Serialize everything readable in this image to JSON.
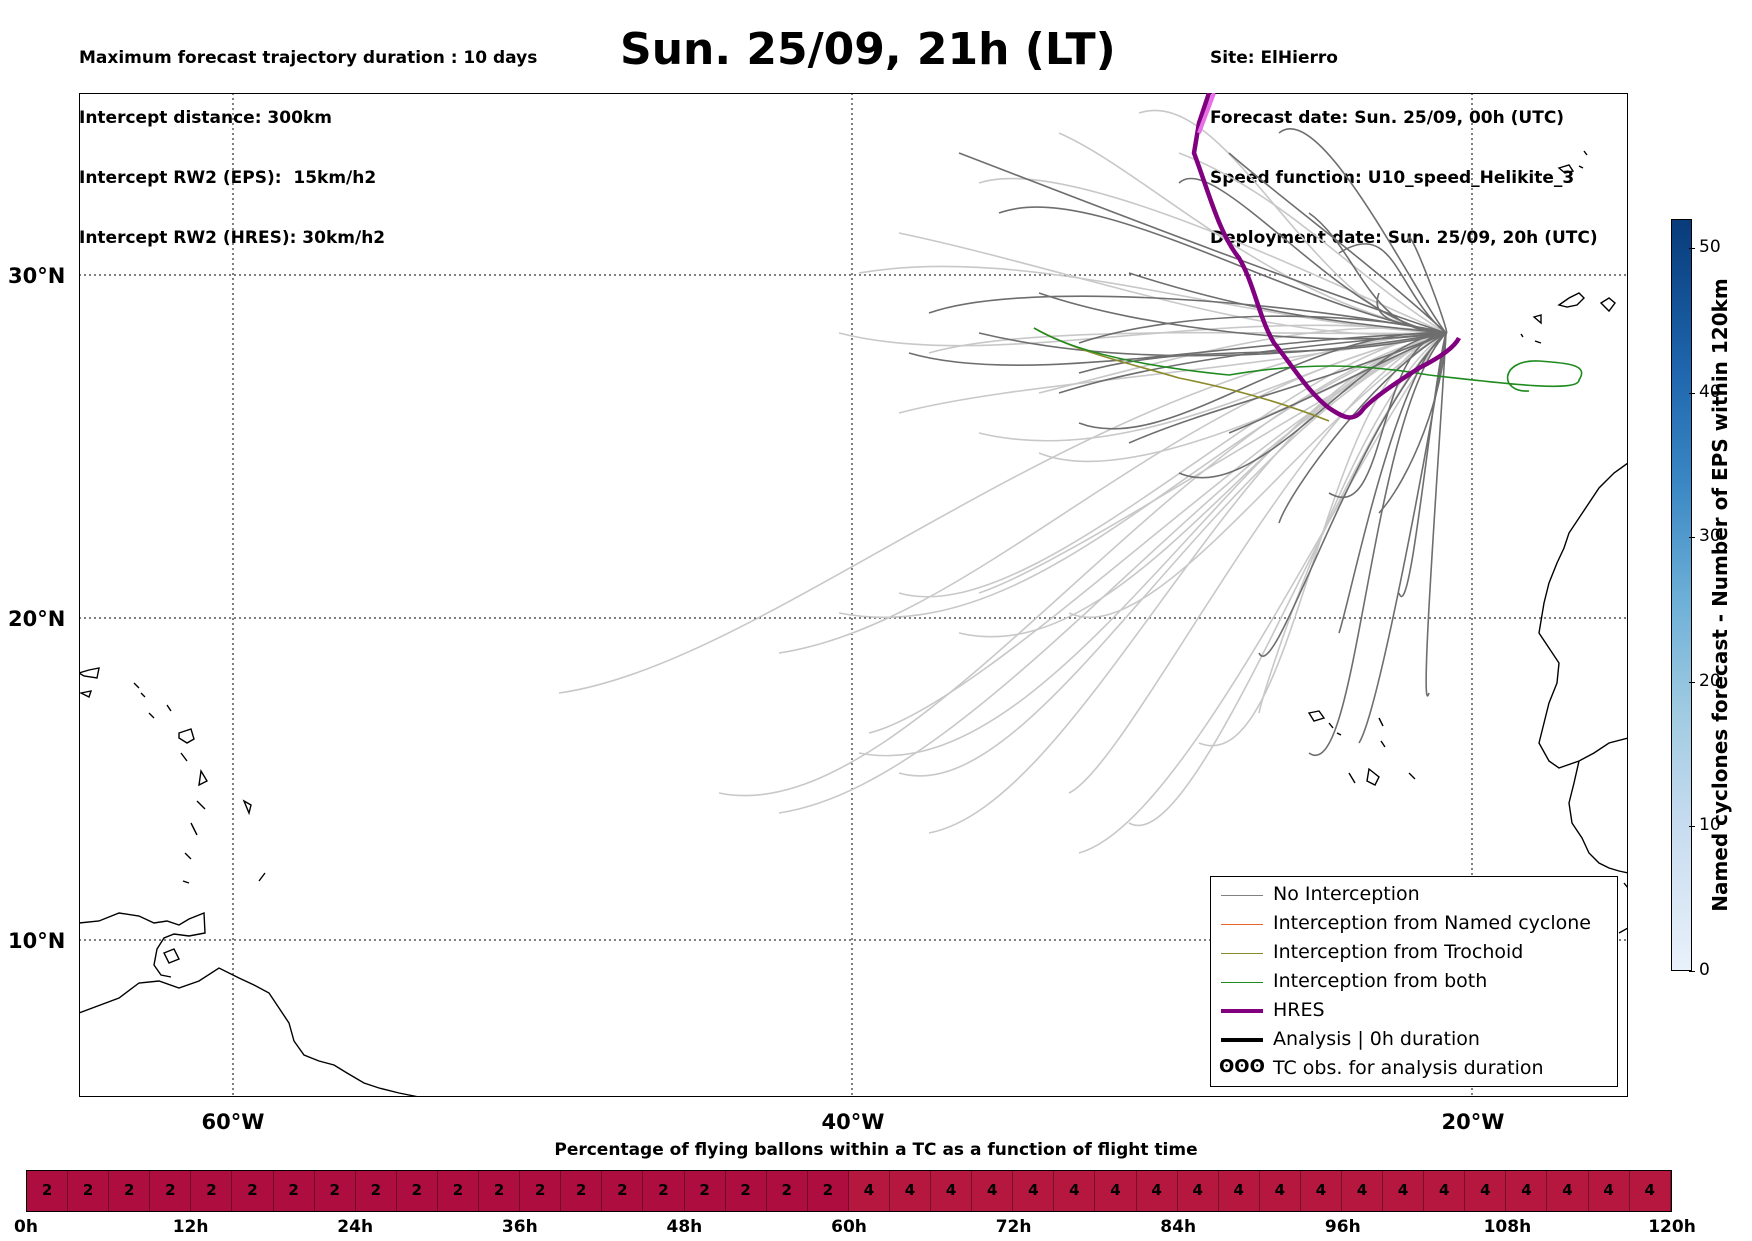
{
  "header_left": [
    "Maximum forecast trajectory duration : 10 days",
    "Intercept distance: 300km",
    "Intercept RW2 (EPS):  15km/h2",
    "Intercept RW2 (HRES): 30km/h2"
  ],
  "header_right": [
    "Site: ElHierro",
    "Forecast date: Sun. 25/09, 00h (UTC)",
    "Speed function: U10_speed_Helikite_3",
    "Deployment date: Sun. 25/09, 20h (UTC)"
  ],
  "title": "Sun. 25/09, 21h (LT)",
  "map": {
    "lat_labels": [
      "30°N",
      "20°N",
      "10°N"
    ],
    "lon_labels": [
      "60°W",
      "40°W",
      "20°W"
    ],
    "extent": {
      "lon": [
        -65,
        -15
      ],
      "lat": [
        4.6,
        33.9
      ]
    },
    "site": {
      "name": "ElHierro",
      "lon": -17.9,
      "lat": 27.8
    }
  },
  "legend": [
    {
      "label": "No Interception",
      "color": "#808080",
      "key": "no_interception"
    },
    {
      "label": "Interception from Named cyclone",
      "color": "#e8642a",
      "key": "named_cyclone"
    },
    {
      "label": "Interception from Trochoid",
      "color": "#8b8b2b",
      "key": "trochoid"
    },
    {
      "label": "Interception from both",
      "color": "#1f8b1f",
      "key": "both"
    },
    {
      "label": "HRES",
      "color": "#800080",
      "key": "hres"
    },
    {
      "label": "Analysis | 0h duration",
      "color": "#000000",
      "key": "analysis"
    },
    {
      "label": "TC obs. for analysis duration",
      "color": "#000000",
      "key": "tc_obs",
      "symbol": "ʘʘʘ"
    }
  ],
  "colorbar": {
    "label": "Named cyclones forecast - Number of EPS within 120km",
    "ticks": [
      "0",
      "10",
      "20",
      "30",
      "40",
      "50"
    ],
    "range": [
      0,
      52
    ]
  },
  "flight_bar": {
    "title": "Percentage of flying ballons within a TC as a function of flight time",
    "values": [
      2,
      2,
      2,
      2,
      2,
      2,
      2,
      2,
      2,
      2,
      2,
      2,
      2,
      2,
      2,
      2,
      2,
      2,
      2,
      2,
      4,
      4,
      4,
      4,
      4,
      4,
      4,
      4,
      4,
      4,
      4,
      4,
      4,
      4,
      4,
      4,
      4,
      4,
      4,
      4
    ],
    "tick_labels": [
      "0h",
      "12h",
      "24h",
      "36h",
      "48h",
      "60h",
      "72h",
      "84h",
      "96h",
      "108h",
      "120h"
    ]
  }
}
